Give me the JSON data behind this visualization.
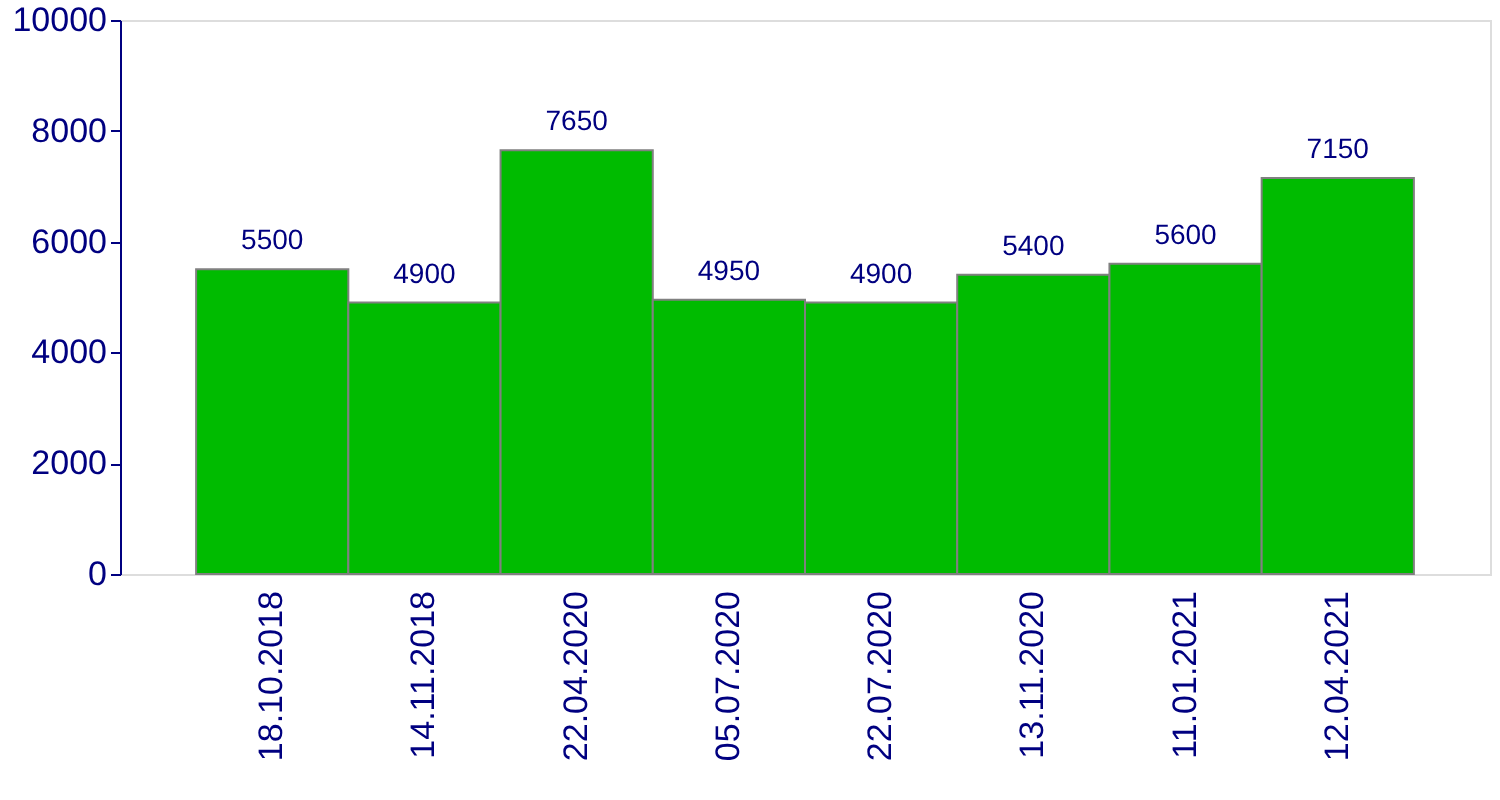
{
  "chart_data": {
    "type": "bar",
    "categories": [
      "18.10.2018",
      "14.11.2018",
      "22.04.2020",
      "05.07.2020",
      "22.07.2020",
      "13.11.2020",
      "11.01.2021",
      "12.04.2021"
    ],
    "values": [
      5500,
      4900,
      7650,
      4950,
      4900,
      5400,
      5600,
      7150
    ],
    "color": "#00bb00",
    "ylim": [
      0,
      10000
    ],
    "yticks": [
      0,
      2000,
      4000,
      6000,
      8000,
      10000
    ],
    "grid": false,
    "data_labels": true
  }
}
